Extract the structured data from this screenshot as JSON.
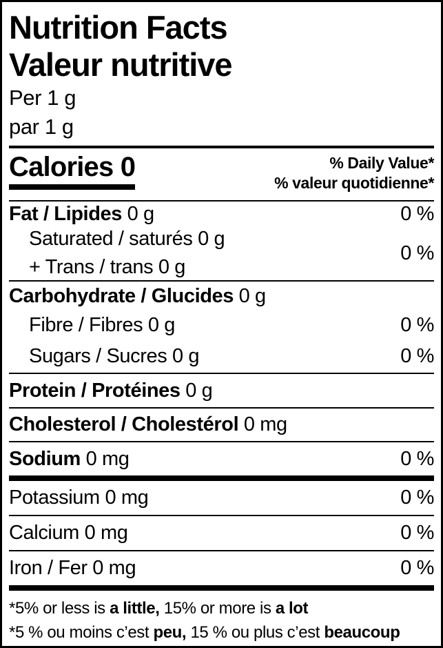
{
  "header": {
    "title_en": "Nutrition Facts",
    "title_fr": "Valeur nutritive",
    "serving_en": "Per 1 g",
    "serving_fr": "par 1 g"
  },
  "calories": {
    "label": "Calories 0"
  },
  "daily_value": {
    "en": "% Daily Value*",
    "fr": "% valeur quotidienne*"
  },
  "rows": [
    {
      "bold": "Fat / Lipides",
      "rest": " 0 g",
      "dv": "0 %"
    },
    {
      "line1": "Saturated / saturés 0 g",
      "line2": "+ Trans / trans 0 g",
      "dv": "0 %"
    },
    {
      "bold": "Carbohydrate / Glucides",
      "rest": " 0 g"
    },
    {
      "text": "Fibre / Fibres 0 g",
      "dv": "0 %"
    },
    {
      "text": "Sugars / Sucres 0 g",
      "dv": "0 %"
    },
    {
      "bold": "Protein / Protéines",
      "rest": " 0 g"
    },
    {
      "bold": "Cholesterol / Cholestérol",
      "rest": " 0 mg"
    },
    {
      "bold": "Sodium",
      "rest": " 0 mg",
      "dv": "0 %"
    },
    {
      "text": "Potassium 0 mg",
      "dv": "0 %"
    },
    {
      "text": "Calcium 0 mg",
      "dv": "0 %"
    },
    {
      "text": "Iron / Fer 0 mg",
      "dv": "0 %"
    }
  ],
  "footnotes": {
    "en": {
      "p1": "*5% or less is ",
      "b1": "a little,",
      "p2": " 15% or more is ",
      "b2": "a lot"
    },
    "fr": {
      "p1": "*5 % ou moins c’est ",
      "b1": "peu,",
      "p2": " 15 % ou plus c’est ",
      "b2": "beaucoup"
    }
  }
}
